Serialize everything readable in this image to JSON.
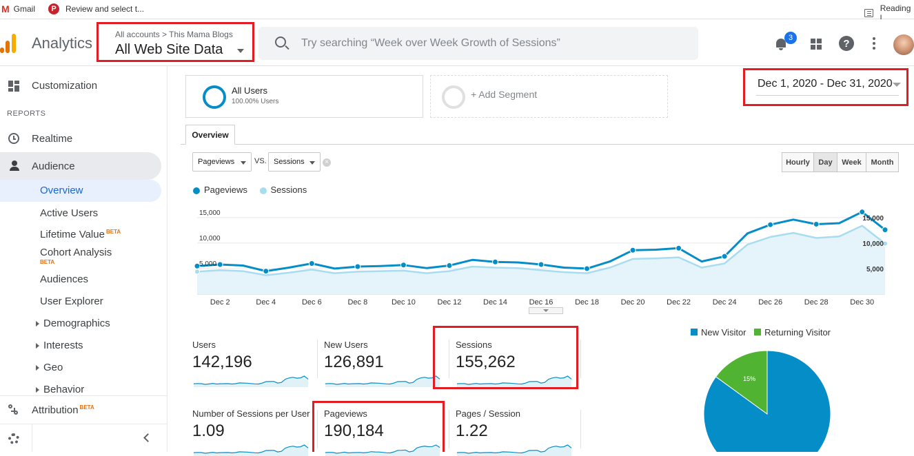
{
  "bookmarks": {
    "gmail": "Gmail",
    "pinterest": "Review and select t...",
    "reading": "Reading l"
  },
  "header": {
    "app_title": "Analytics",
    "account_crumb": "All accounts > This Mama Blogs",
    "view_name": "All Web Site Data",
    "search_placeholder": "Try searching “Week over Week Growth of Sessions”",
    "notification_count": "3"
  },
  "sidebar": {
    "customization": "Customization",
    "reports_heading": "REPORTS",
    "realtime": "Realtime",
    "audience": "Audience",
    "audience_items": [
      "Overview",
      "Active Users",
      "Lifetime Value",
      "Cohort Analysis",
      "Audiences",
      "User Explorer",
      "Demographics",
      "Interests",
      "Geo",
      "Behavior"
    ],
    "beta": "BETA",
    "attribution": "Attribution"
  },
  "segments": {
    "all_users": "All Users",
    "all_users_pct": "100.00% Users",
    "add_segment": "+ Add Segment"
  },
  "date_range": "Dec 1, 2020 - Dec 31, 2020",
  "tabs": {
    "overview": "Overview"
  },
  "controls": {
    "metric1": "Pageviews",
    "vs": "VS.",
    "metric2": "Sessions",
    "granularity": [
      "Hourly",
      "Day",
      "Week",
      "Month"
    ],
    "active_granularity": "Day"
  },
  "chart_data": {
    "type": "line",
    "series": [
      {
        "name": "Pageviews",
        "color": "#058dc7",
        "values": [
          5500,
          5800,
          5600,
          4500,
          5200,
          6000,
          5000,
          5400,
          5500,
          5700,
          5100,
          5600,
          6700,
          6300,
          6200,
          5800,
          5200,
          5000,
          6400,
          8600,
          8700,
          9000,
          6400,
          7400,
          11900,
          13600,
          14600,
          13700,
          13900,
          16100,
          12600
        ]
      },
      {
        "name": "Sessions",
        "color": "#a8dcf0",
        "values": [
          4400,
          4700,
          4500,
          3700,
          4200,
          4800,
          4100,
          4400,
          4500,
          4600,
          4100,
          4500,
          5400,
          5200,
          5100,
          4700,
          4300,
          4100,
          5200,
          6900,
          7000,
          7200,
          5200,
          6000,
          9700,
          11200,
          12000,
          11000,
          11300,
          13400,
          9900
        ]
      }
    ],
    "x_labels": [
      "Dec 2",
      "Dec 4",
      "Dec 6",
      "Dec 8",
      "Dec 10",
      "Dec 12",
      "Dec 14",
      "Dec 16",
      "Dec 18",
      "Dec 20",
      "Dec 22",
      "Dec 24",
      "Dec 26",
      "Dec 28",
      "Dec 30"
    ],
    "y_ticks": [
      "15,000",
      "10,000",
      "5,000"
    ],
    "ylim": [
      0,
      17000
    ]
  },
  "metrics": [
    {
      "label": "Users",
      "value": "142,196"
    },
    {
      "label": "New Users",
      "value": "126,891"
    },
    {
      "label": "Sessions",
      "value": "155,262"
    },
    {
      "label": "Number of Sessions per User",
      "value": "1.09"
    },
    {
      "label": "Pageviews",
      "value": "190,184"
    },
    {
      "label": "Pages / Session",
      "value": "1.22"
    }
  ],
  "pie": {
    "legend_new": "New Visitor",
    "legend_returning": "Returning Visitor",
    "new_color": "#058dc7",
    "returning_color": "#50b432",
    "returning_pct_label": "15%",
    "returning_fraction": 0.15
  }
}
